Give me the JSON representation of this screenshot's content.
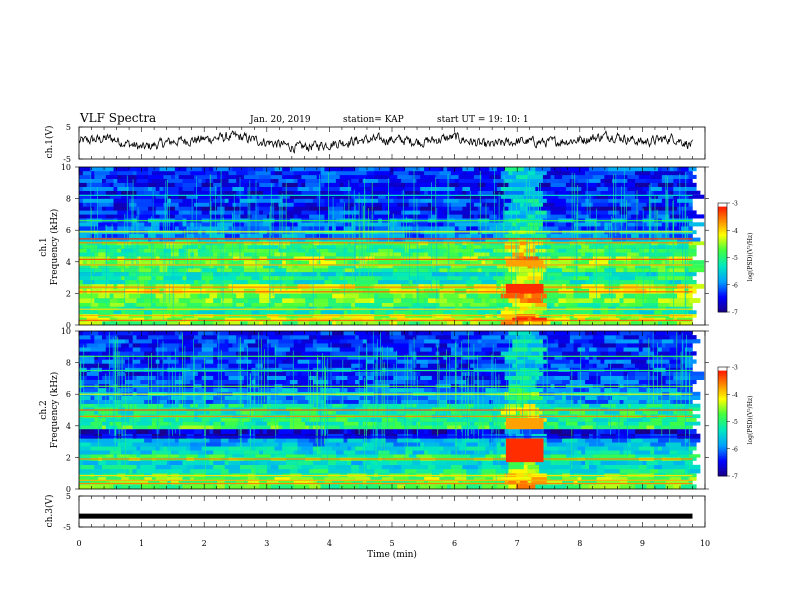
{
  "header": {
    "title": "VLF Spectra",
    "date": "Jan. 20, 2019",
    "station": "station= KAP",
    "start": "start  UT =   19: 10: 1"
  },
  "colors": {
    "colormap": [
      "#1a0080",
      "#0000ff",
      "#00a0ff",
      "#00e8c0",
      "#40ff40",
      "#ffff00",
      "#ff8000",
      "#ff0000",
      "#ffffff"
    ]
  },
  "chart_data": [
    {
      "type": "line",
      "panel": "ch1-waveform",
      "ylabel": "ch.1(V)",
      "ylim": [
        -5,
        5
      ],
      "yticks": [
        "5",
        "-5"
      ],
      "xlim": [
        0,
        10
      ],
      "x": [
        0,
        0.5,
        1,
        1.5,
        2,
        2.5,
        3,
        3.5,
        4,
        4.5,
        5,
        5.5,
        6,
        6.5,
        7,
        7.5,
        8,
        8.5,
        9,
        9.5,
        9.8
      ],
      "y": [
        0.5,
        1.5,
        -1.5,
        0.5,
        1.2,
        2.0,
        0.3,
        -1.5,
        -0.3,
        0.9,
        1.1,
        0.4,
        1.8,
        -0.8,
        0.5,
        0.2,
        1.0,
        2.4,
        0.3,
        1.6,
        -0.8
      ]
    },
    {
      "type": "heatmap",
      "panel": "ch1-spectrogram",
      "ylabel_top": "ch.1",
      "ylabel": "Frequency (kHz)",
      "ylim": [
        0,
        10
      ],
      "yticks": [
        "0",
        "2",
        "4",
        "6",
        "8",
        "10"
      ],
      "xlim": [
        0,
        10
      ],
      "colorbar": {
        "label": "log(PSD)(V²/Hz)",
        "range": [
          -7,
          -3
        ],
        "ticks": [
          "-3",
          "-4",
          "-5",
          "-6",
          "-7"
        ]
      }
    },
    {
      "type": "heatmap",
      "panel": "ch2-spectrogram",
      "ylabel_top": "ch.2",
      "ylabel": "Frequency (kHz)",
      "ylim": [
        0,
        10
      ],
      "yticks": [
        "0",
        "2",
        "4",
        "6",
        "8",
        "10"
      ],
      "xlim": [
        0,
        10
      ],
      "colorbar": {
        "label": "log(PSD)(V²/Hz)",
        "range": [
          -7,
          -3
        ],
        "ticks": [
          "-3",
          "-4",
          "-5",
          "-6",
          "-7"
        ]
      }
    },
    {
      "type": "line",
      "panel": "ch3-waveform",
      "ylabel": "ch.3(V)",
      "ylim": [
        -5,
        5
      ],
      "yticks": [
        "5",
        "-5"
      ],
      "xlim": [
        0,
        10
      ],
      "x": [
        0,
        9.8
      ],
      "y": [
        -1.5,
        -1.5
      ]
    }
  ],
  "xaxis": {
    "label": "Time (min)",
    "ticks": [
      "0",
      "1",
      "2",
      "3",
      "4",
      "5",
      "6",
      "7",
      "8",
      "9",
      "10"
    ]
  }
}
